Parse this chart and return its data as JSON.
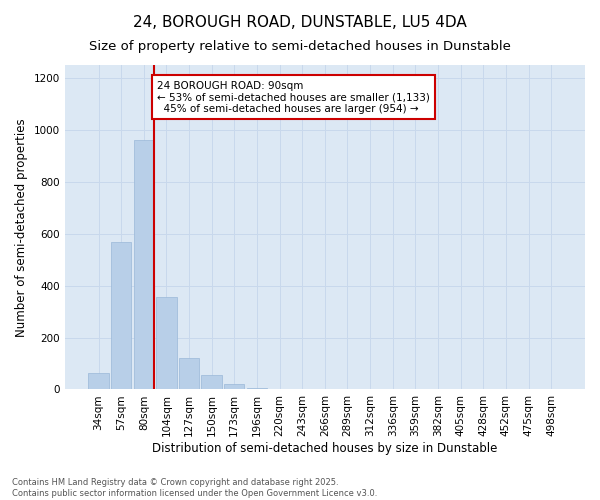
{
  "title1": "24, BOROUGH ROAD, DUNSTABLE, LU5 4DA",
  "title2": "Size of property relative to semi-detached houses in Dunstable",
  "xlabel": "Distribution of semi-detached houses by size in Dunstable",
  "ylabel": "Number of semi-detached properties",
  "categories": [
    "34sqm",
    "57sqm",
    "80sqm",
    "104sqm",
    "127sqm",
    "150sqm",
    "173sqm",
    "196sqm",
    "220sqm",
    "243sqm",
    "266sqm",
    "289sqm",
    "312sqm",
    "336sqm",
    "359sqm",
    "382sqm",
    "405sqm",
    "428sqm",
    "452sqm",
    "475sqm",
    "498sqm"
  ],
  "values": [
    65,
    570,
    960,
    355,
    120,
    55,
    20,
    5,
    0,
    0,
    0,
    0,
    0,
    0,
    0,
    0,
    0,
    0,
    0,
    0,
    0
  ],
  "bar_color": "#b8cfe8",
  "bar_edge_color": "#9ab8d8",
  "grid_color": "#c8d8ec",
  "bg_color": "#dce8f4",
  "annotation_text": "24 BOROUGH ROAD: 90sqm\n← 53% of semi-detached houses are smaller (1,133)\n  45% of semi-detached houses are larger (954) →",
  "vline_color": "#cc0000",
  "ylim": [
    0,
    1250
  ],
  "yticks": [
    0,
    200,
    400,
    600,
    800,
    1000,
    1200
  ],
  "footnote": "Contains HM Land Registry data © Crown copyright and database right 2025.\nContains public sector information licensed under the Open Government Licence v3.0.",
  "title_fontsize": 11,
  "subtitle_fontsize": 9.5,
  "axis_fontsize": 8.5,
  "tick_fontsize": 7.5,
  "annot_fontsize": 7.5
}
